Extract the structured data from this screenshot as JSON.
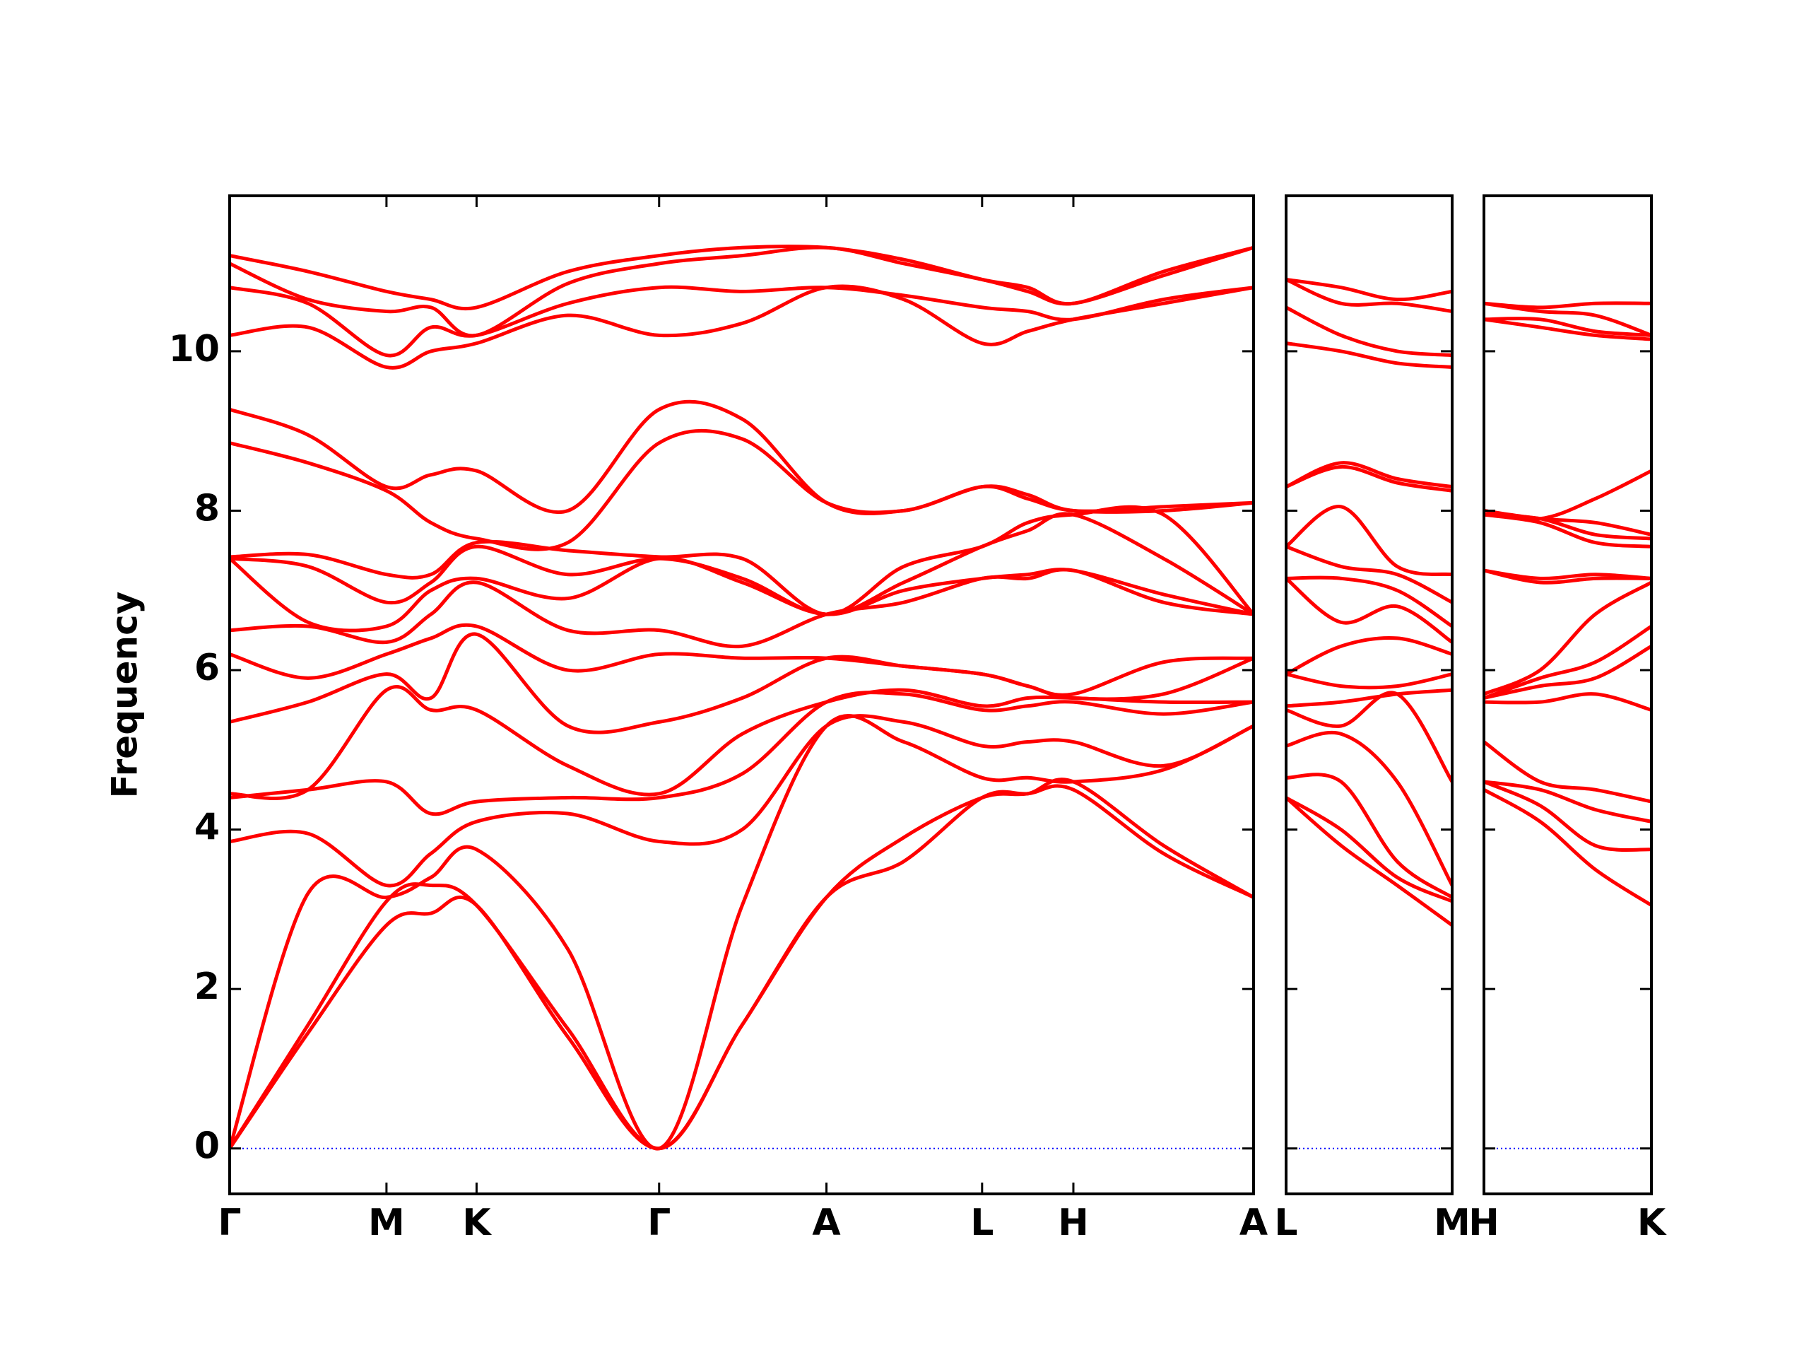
{
  "chart_data": [
    {
      "type": "line",
      "y_label": "Frequency",
      "ytick_labels": true,
      "color": "#ff0000",
      "zero_line_color": "#0000ff",
      "xlim": [
        0,
        875
      ],
      "ylim": [
        -0.57,
        11.95
      ],
      "yticks": [
        0,
        2,
        4,
        6,
        8,
        10
      ],
      "xticks": [
        {
          "value": 0,
          "label": "Γ"
        },
        {
          "value": 134,
          "label": "M"
        },
        {
          "value": 211,
          "label": "K"
        },
        {
          "value": 367,
          "label": "Γ"
        },
        {
          "value": 510,
          "label": "A"
        },
        {
          "value": 643,
          "label": "L"
        },
        {
          "value": 721,
          "label": "H"
        },
        {
          "value": 875,
          "label": "A"
        }
      ],
      "x": [
        0,
        67,
        134,
        172,
        211,
        289,
        367,
        438,
        510,
        576,
        643,
        682,
        721,
        798,
        875
      ],
      "series": [
        {
          "values": [
            0,
            1.45,
            2.8,
            2.95,
            3.05,
            1.4,
            0,
            1.55,
            3.15,
            3.6,
            4.4,
            4.45,
            4.5,
            3.7,
            3.15
          ]
        },
        {
          "values": [
            0,
            1.55,
            3.1,
            3.3,
            3.05,
            1.5,
            0,
            1.55,
            3.15,
            3.9,
            4.4,
            4.45,
            4.6,
            3.8,
            3.15
          ]
        },
        {
          "values": [
            0,
            3.2,
            3.15,
            3.4,
            3.75,
            2.5,
            0,
            3.05,
            5.3,
            5.1,
            4.65,
            4.65,
            4.6,
            4.75,
            5.3
          ]
        },
        {
          "values": [
            3.85,
            3.95,
            3.3,
            3.7,
            4.1,
            4.2,
            3.85,
            4.0,
            5.3,
            5.35,
            5.05,
            5.1,
            5.1,
            4.8,
            5.3
          ]
        },
        {
          "values": [
            4.4,
            4.5,
            4.6,
            4.2,
            4.35,
            4.4,
            4.4,
            4.7,
            5.6,
            5.7,
            5.5,
            5.55,
            5.6,
            5.45,
            5.6
          ]
        },
        {
          "values": [
            4.45,
            4.5,
            5.75,
            5.5,
            5.5,
            4.8,
            4.45,
            5.2,
            5.6,
            5.75,
            5.55,
            5.65,
            5.65,
            5.6,
            5.6
          ]
        },
        {
          "values": [
            5.35,
            5.6,
            5.95,
            5.65,
            6.45,
            5.3,
            5.35,
            5.65,
            6.15,
            6.05,
            5.95,
            5.8,
            5.65,
            5.7,
            6.15
          ]
        },
        {
          "values": [
            6.2,
            5.9,
            6.2,
            6.4,
            6.55,
            6.0,
            6.2,
            6.15,
            6.15,
            6.05,
            5.95,
            5.8,
            5.7,
            6.1,
            6.15
          ]
        },
        {
          "values": [
            6.5,
            6.55,
            6.35,
            6.7,
            7.1,
            6.5,
            6.5,
            6.3,
            6.7,
            6.85,
            7.15,
            7.15,
            7.25,
            6.85,
            6.7
          ]
        },
        {
          "values": [
            7.4,
            6.6,
            6.55,
            7.0,
            7.15,
            6.9,
            7.4,
            7.1,
            6.7,
            7.0,
            7.15,
            7.2,
            7.25,
            6.95,
            6.7
          ]
        },
        {
          "values": [
            7.4,
            7.3,
            6.85,
            7.1,
            7.55,
            7.2,
            7.4,
            7.15,
            6.7,
            7.1,
            7.55,
            7.75,
            7.95,
            7.4,
            6.7
          ]
        },
        {
          "values": [
            7.42,
            7.45,
            7.2,
            7.2,
            7.6,
            7.5,
            7.42,
            7.4,
            6.7,
            7.3,
            7.55,
            7.85,
            7.95,
            7.95,
            6.7
          ]
        },
        {
          "values": [
            8.85,
            8.6,
            8.25,
            7.85,
            7.65,
            7.6,
            8.85,
            8.9,
            8.1,
            8.0,
            8.3,
            8.15,
            8.0,
            8.0,
            8.1
          ]
        },
        {
          "values": [
            9.27,
            8.95,
            8.3,
            8.45,
            8.5,
            8.0,
            9.27,
            9.15,
            8.1,
            8.0,
            8.3,
            8.2,
            8.0,
            8.05,
            8.1
          ]
        },
        {
          "values": [
            10.2,
            10.3,
            9.8,
            10.0,
            10.1,
            10.45,
            10.2,
            10.35,
            10.8,
            10.65,
            10.1,
            10.25,
            10.4,
            10.6,
            10.8
          ]
        },
        {
          "values": [
            10.8,
            10.6,
            9.95,
            10.3,
            10.2,
            10.6,
            10.8,
            10.75,
            10.8,
            10.7,
            10.55,
            10.5,
            10.4,
            10.65,
            10.8
          ]
        },
        {
          "values": [
            11.1,
            10.65,
            10.5,
            10.55,
            10.2,
            10.85,
            11.1,
            11.2,
            11.3,
            11.1,
            10.9,
            10.75,
            10.6,
            10.95,
            11.3
          ]
        },
        {
          "values": [
            11.2,
            11.0,
            10.75,
            10.65,
            10.55,
            11.0,
            11.2,
            11.3,
            11.3,
            11.15,
            10.9,
            10.8,
            10.6,
            11.0,
            11.3
          ]
        }
      ]
    },
    {
      "type": "line",
      "ytick_labels": false,
      "color": "#ff0000",
      "zero_line_color": "#0000ff",
      "xlim": [
        0,
        142
      ],
      "ylim": [
        -0.57,
        11.95
      ],
      "yticks": [
        0,
        2,
        4,
        6,
        8,
        10
      ],
      "xticks": [
        {
          "value": 0,
          "label": "L"
        },
        {
          "value": 142,
          "label": "M"
        }
      ],
      "x": [
        0,
        47,
        95,
        142
      ],
      "series": [
        {
          "values": [
            4.4,
            3.8,
            3.3,
            2.8
          ]
        },
        {
          "values": [
            4.4,
            4.0,
            3.4,
            3.1
          ]
        },
        {
          "values": [
            4.65,
            4.6,
            3.6,
            3.15
          ]
        },
        {
          "values": [
            5.05,
            5.2,
            4.6,
            3.3
          ]
        },
        {
          "values": [
            5.5,
            5.3,
            5.7,
            4.6
          ]
        },
        {
          "values": [
            5.55,
            5.6,
            5.7,
            5.75
          ]
        },
        {
          "values": [
            5.95,
            5.8,
            5.8,
            5.95
          ]
        },
        {
          "values": [
            5.95,
            6.3,
            6.4,
            6.2
          ]
        },
        {
          "values": [
            7.15,
            6.6,
            6.8,
            6.35
          ]
        },
        {
          "values": [
            7.15,
            7.15,
            7.0,
            6.55
          ]
        },
        {
          "values": [
            7.55,
            7.3,
            7.2,
            6.85
          ]
        },
        {
          "values": [
            7.55,
            8.05,
            7.3,
            7.2
          ]
        },
        {
          "values": [
            8.3,
            8.55,
            8.35,
            8.25
          ]
        },
        {
          "values": [
            8.3,
            8.6,
            8.4,
            8.3
          ]
        },
        {
          "values": [
            10.1,
            10.0,
            9.85,
            9.8
          ]
        },
        {
          "values": [
            10.55,
            10.2,
            10.0,
            9.95
          ]
        },
        {
          "values": [
            10.9,
            10.6,
            10.6,
            10.5
          ]
        },
        {
          "values": [
            10.9,
            10.8,
            10.65,
            10.75
          ]
        }
      ]
    },
    {
      "type": "line",
      "ytick_labels": false,
      "color": "#ff0000",
      "zero_line_color": "#0000ff",
      "xlim": [
        0,
        143
      ],
      "ylim": [
        -0.57,
        11.95
      ],
      "yticks": [
        0,
        2,
        4,
        6,
        8,
        10
      ],
      "xticks": [
        {
          "value": 0,
          "label": "H"
        },
        {
          "value": 143,
          "label": "K"
        }
      ],
      "x": [
        0,
        48,
        95,
        143
      ],
      "series": [
        {
          "values": [
            4.5,
            4.1,
            3.5,
            3.05
          ]
        },
        {
          "values": [
            4.6,
            4.3,
            3.8,
            3.75
          ]
        },
        {
          "values": [
            4.6,
            4.5,
            4.25,
            4.1
          ]
        },
        {
          "values": [
            5.1,
            4.6,
            4.5,
            4.35
          ]
        },
        {
          "values": [
            5.6,
            5.6,
            5.7,
            5.5
          ]
        },
        {
          "values": [
            5.65,
            5.8,
            5.9,
            6.3
          ]
        },
        {
          "values": [
            5.65,
            5.9,
            6.1,
            6.55
          ]
        },
        {
          "values": [
            5.7,
            6.0,
            6.7,
            7.1
          ]
        },
        {
          "values": [
            7.25,
            7.1,
            7.15,
            7.15
          ]
        },
        {
          "values": [
            7.25,
            7.15,
            7.2,
            7.15
          ]
        },
        {
          "values": [
            7.95,
            7.85,
            7.6,
            7.55
          ]
        },
        {
          "values": [
            7.95,
            7.9,
            7.7,
            7.65
          ]
        },
        {
          "values": [
            8.0,
            7.9,
            7.85,
            7.7
          ]
        },
        {
          "values": [
            8.0,
            7.9,
            8.15,
            8.5
          ]
        },
        {
          "values": [
            10.4,
            10.3,
            10.2,
            10.15
          ]
        },
        {
          "values": [
            10.4,
            10.4,
            10.25,
            10.2
          ]
        },
        {
          "values": [
            10.6,
            10.5,
            10.45,
            10.2
          ]
        },
        {
          "values": [
            10.6,
            10.55,
            10.6,
            10.6
          ]
        }
      ]
    }
  ]
}
